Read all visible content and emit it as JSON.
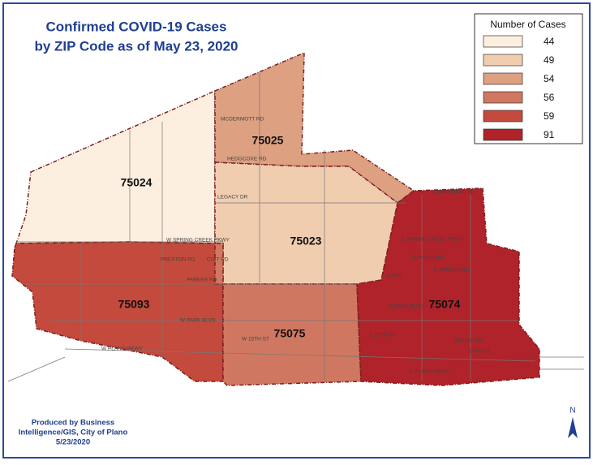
{
  "header": {
    "title_lines": [
      "Confirmed COVID-19 Cases",
      "by ZIP Code as of May 23, 2020"
    ]
  },
  "legend": {
    "title": "Number of Cases",
    "entries": [
      {
        "value": 44,
        "color": "#fcefdf"
      },
      {
        "value": 49,
        "color": "#f1cdb0"
      },
      {
        "value": 54,
        "color": "#dda081"
      },
      {
        "value": 56,
        "color": "#cf7760"
      },
      {
        "value": 59,
        "color": "#c34a3c"
      },
      {
        "value": 91,
        "color": "#b0232a"
      }
    ]
  },
  "regions": [
    {
      "zip": "75024",
      "cases": 44
    },
    {
      "zip": "75025",
      "cases": 54
    },
    {
      "zip": "75023",
      "cases": 49
    },
    {
      "zip": "75093",
      "cases": 59
    },
    {
      "zip": "75075",
      "cases": 56
    },
    {
      "zip": "75074",
      "cases": 91
    }
  ],
  "streets": [
    "W SPRING CREEK PKWY",
    "PARKER RD",
    "W PARK BLVD",
    "W 15TH ST",
    "W PLANO PKWY",
    "LEGACY DR",
    "HEDGCOXE RD",
    "MCDERMOTT RD",
    "CHAPARRAL RD",
    "E SPRING CREEK PKWY",
    "E PARKER RD",
    "E PARK BLVD",
    "E 15TH ST",
    "E PLANO PKWY",
    "14TH ST",
    "PRESTON RD",
    "COIT RD",
    "JUPITER RD",
    "SHILOH RD",
    "K AVE"
  ],
  "footer": {
    "lines": [
      "Produced by Business",
      "Intelligence/GIS, City of Plano",
      "5/23/2020"
    ]
  },
  "north_arrow": "N"
}
